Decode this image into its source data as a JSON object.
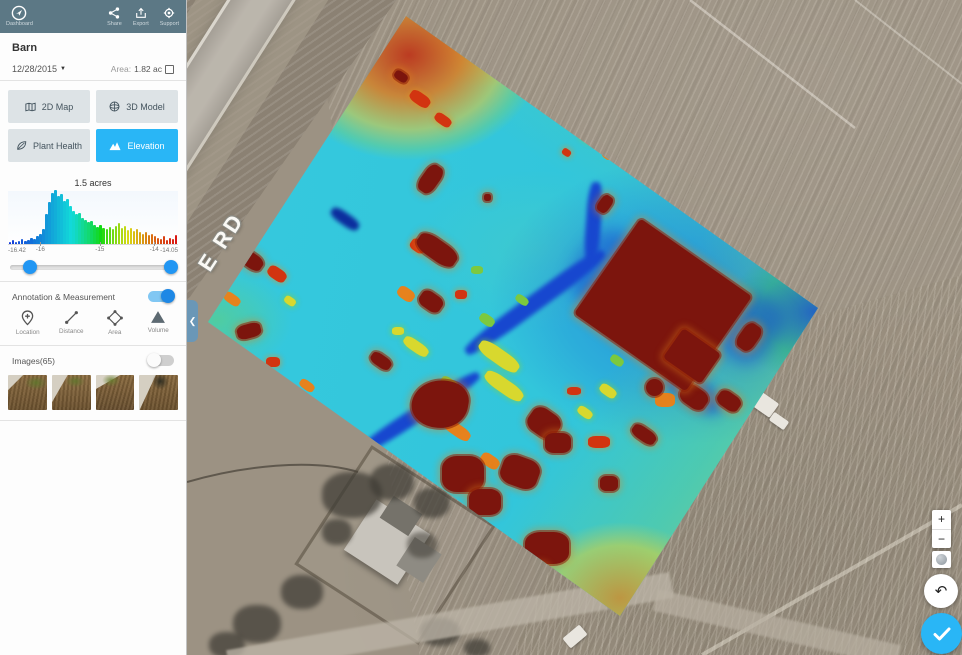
{
  "header": {
    "brand": "Dashboard",
    "actions": [
      {
        "label": "Share"
      },
      {
        "label": "Export"
      },
      {
        "label": "Support"
      }
    ]
  },
  "project": {
    "name": "Barn",
    "date": "12/28/2015",
    "area_label": "Area:",
    "area_value": "1.82 ac"
  },
  "modes": [
    {
      "label": "2D Map",
      "active": false
    },
    {
      "label": "3D Model",
      "active": false
    },
    {
      "label": "Plant Health",
      "active": false
    },
    {
      "label": "Elevation",
      "active": true
    }
  ],
  "elevation_panel": {
    "acres_label": "1.5 acres",
    "slider": {
      "left_pct": 8,
      "right_pct": 93,
      "min_label": "-16.42",
      "max_label": "-14.05"
    }
  },
  "chart_data": {
    "type": "histogram",
    "title": "1.5 acres",
    "x_min_label": "-16.42",
    "x_max_label": "-14.05",
    "x_ticks": [
      "-16",
      "-15",
      "-14"
    ],
    "x_tick_pct": [
      19,
      54,
      86
    ],
    "color_scale": "elevation blue-to-red",
    "values": [
      4,
      7,
      3,
      6,
      9,
      5,
      8,
      12,
      10,
      14,
      18,
      28,
      55,
      78,
      95,
      100,
      88,
      92,
      80,
      84,
      70,
      62,
      55,
      58,
      48,
      44,
      40,
      42,
      36,
      32,
      35,
      30,
      28,
      31,
      27,
      33,
      38,
      30,
      34,
      26,
      29,
      24,
      27,
      22,
      18,
      22,
      16,
      19,
      14,
      12,
      10,
      14,
      8,
      12,
      9,
      16
    ]
  },
  "annotation": {
    "title": "Annotation & Measurement",
    "enabled": true,
    "tools": [
      {
        "label": "Location"
      },
      {
        "label": "Distance"
      },
      {
        "label": "Area"
      },
      {
        "label": "Volume"
      }
    ]
  },
  "images": {
    "label": "Images(65)",
    "enabled": false,
    "thumb_count": 4
  },
  "map": {
    "road_label": "E RD"
  },
  "controls": {
    "zoom_in": "+",
    "zoom_out": "−",
    "undo": "↶"
  },
  "colors": {
    "accent": "#29b6f6",
    "topbar": "#5c7885",
    "heat_low": "#1747cf",
    "heat_mid": "#36c9de",
    "heat_high": "#7c150d"
  }
}
